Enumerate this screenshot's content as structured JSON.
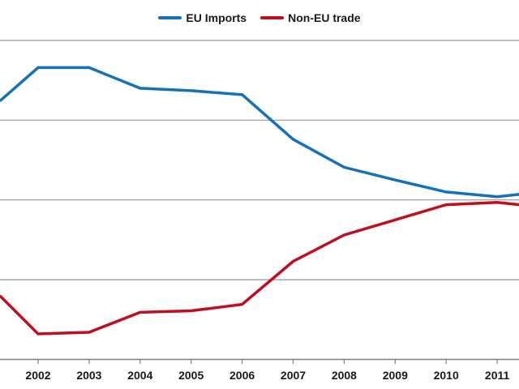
{
  "colors": {
    "background": "#FFFFFF",
    "gridline": "#969696",
    "axis_line": "#808080",
    "label_text": "#1A1A1A"
  },
  "chart_data": {
    "type": "line",
    "x": [
      2001.25,
      2002,
      2003,
      2004,
      2005,
      2006,
      2007,
      2008,
      2009,
      2010,
      2011,
      2011.43
    ],
    "x_tick_labels": [
      "2002",
      "2003",
      "2004",
      "2005",
      "2006",
      "2007",
      "2008",
      "2009",
      "2010",
      "2011"
    ],
    "series": [
      {
        "name": "EU Imports",
        "color": "#1572B8",
        "values": [
          32.4,
          36.6,
          36.6,
          34.0,
          33.7,
          33.2,
          27.6,
          24.1,
          22.5,
          21.0,
          20.4,
          20.7
        ]
      },
      {
        "name": "Non-EU trade",
        "color": "#C00E1E",
        "values": [
          8.0,
          3.2,
          3.4,
          5.9,
          6.1,
          6.9,
          12.3,
          15.6,
          17.5,
          19.4,
          19.7,
          19.4
        ]
      }
    ],
    "xlim": [
      2001.25,
      2011.43
    ],
    "ylim": [
      0,
      40
    ],
    "y_gridlines": [
      0,
      10,
      20,
      30,
      40
    ],
    "y_axis_labels_visible": false,
    "legend_position": "top-center",
    "grid": "horizontal"
  }
}
